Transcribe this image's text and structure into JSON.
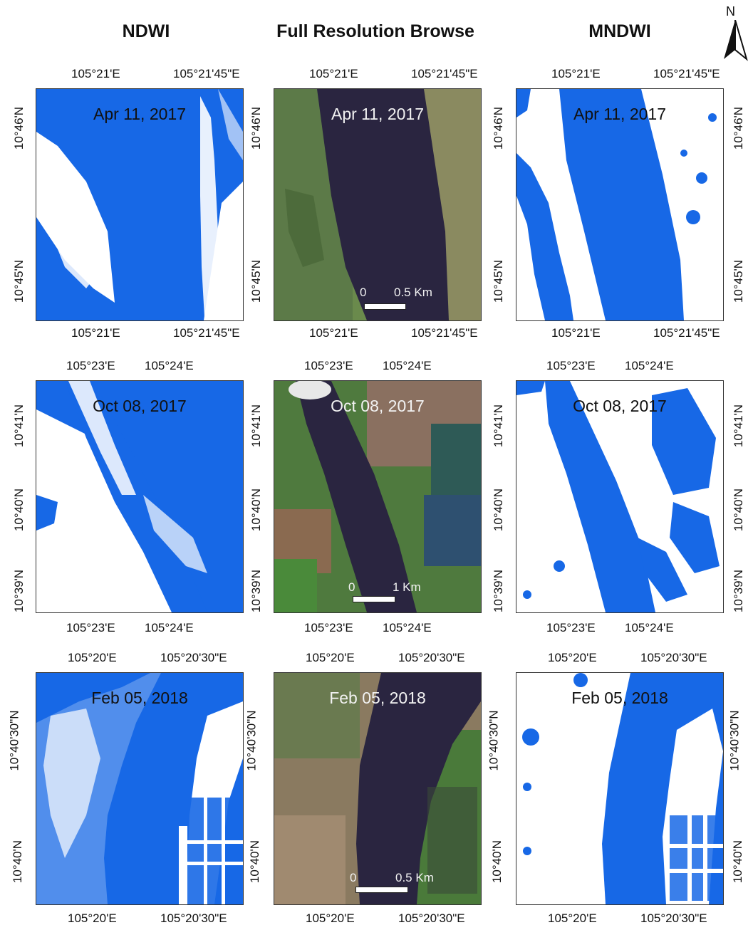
{
  "columns": [
    "NDWI",
    "Full Resolution Browse",
    "MNDWI"
  ],
  "north_label": "N",
  "colors": {
    "water": "#1768e6",
    "land": "#ffffff",
    "river_dark": "#2a2540"
  },
  "rows": [
    {
      "date": "Apr 11, 2017",
      "lon_ticks": [
        "105°21'E",
        "105°21'45\"E"
      ],
      "lat_ticks": [
        "10°46'N",
        "10°45'N"
      ],
      "scale": {
        "zero": "0",
        "end": "0.5 Km"
      }
    },
    {
      "date": "Oct 08, 2017",
      "lon_ticks": [
        "105°23'E",
        "105°24'E"
      ],
      "lat_ticks": [
        "10°41'N",
        "10°40'N",
        "10°39'N"
      ],
      "scale": {
        "zero": "0",
        "end": "1 Km"
      }
    },
    {
      "date": "Feb 05, 2018",
      "lon_ticks": [
        "105°20'E",
        "105°20'30\"E"
      ],
      "lat_ticks": [
        "10°40'30\"N",
        "10°40'N"
      ],
      "scale": {
        "zero": "0",
        "end": "0.5 Km"
      }
    }
  ]
}
